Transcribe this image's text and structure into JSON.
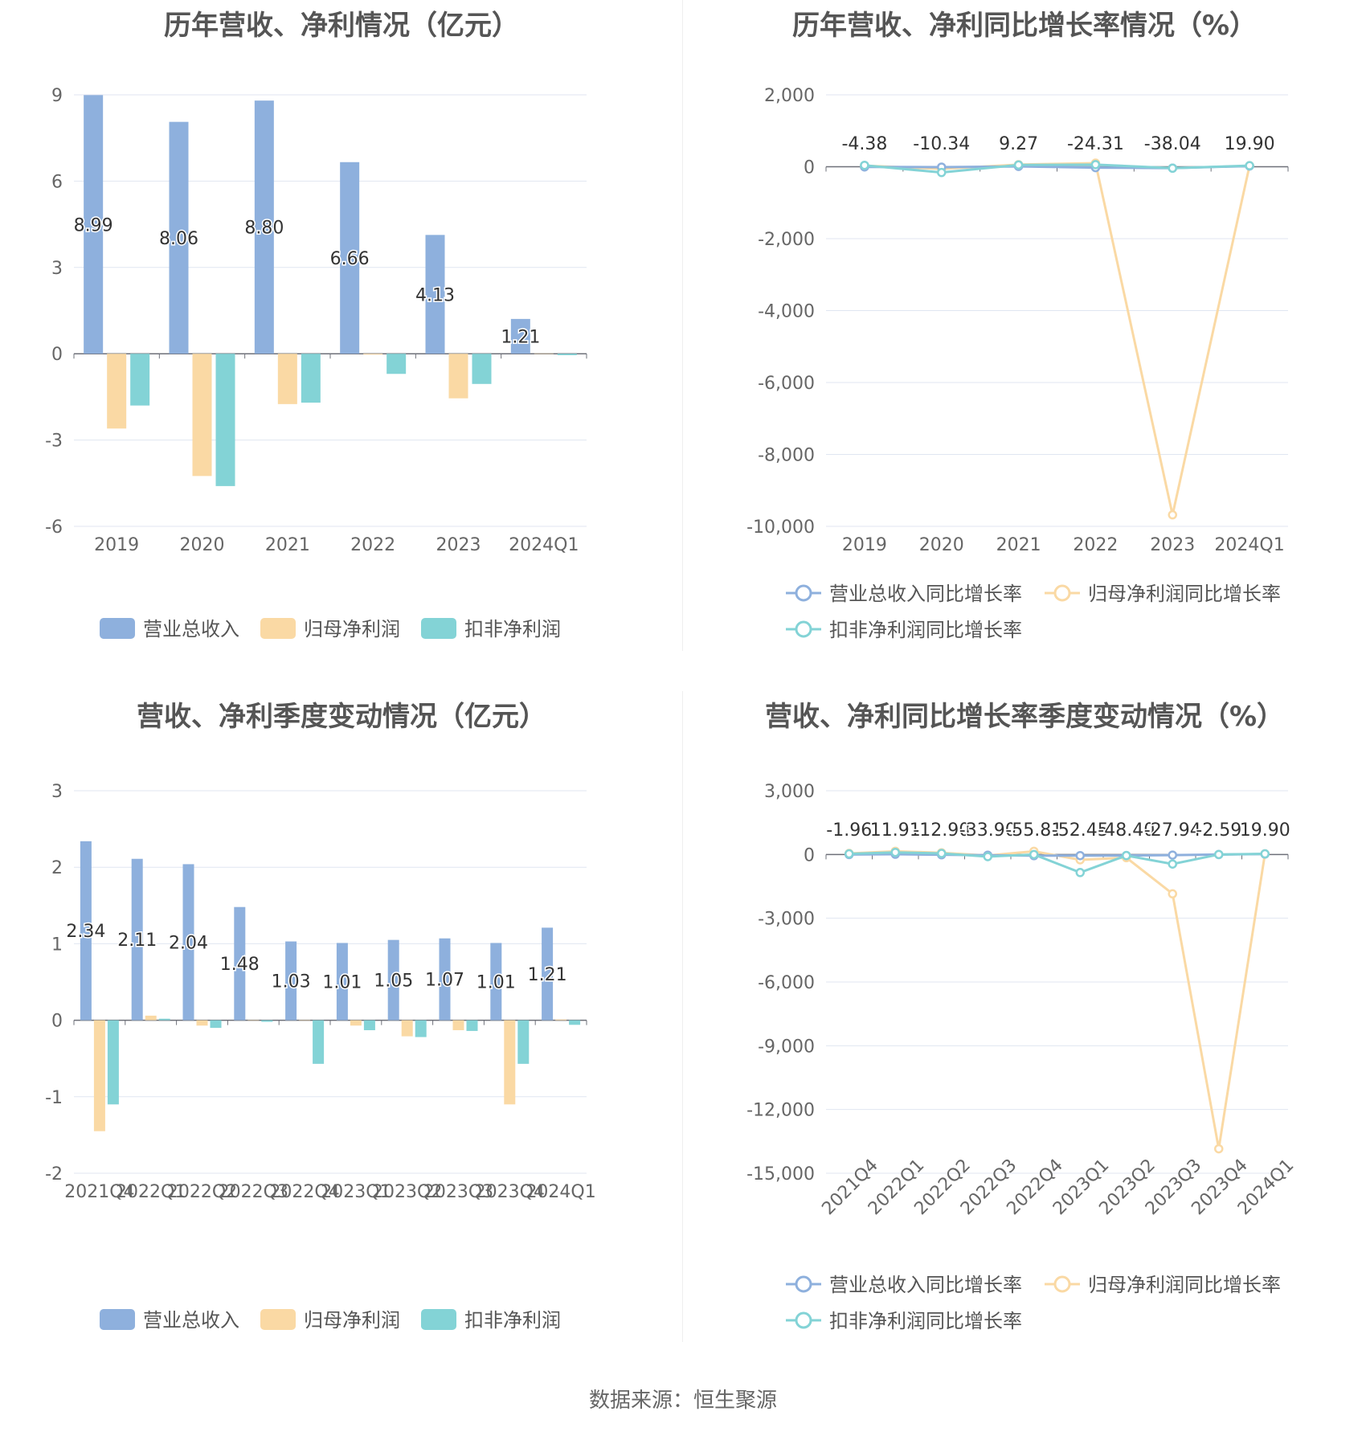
{
  "source": "数据来源：恒生聚源",
  "chart_data": [
    {
      "type": "bar",
      "title": "历年营收、净利情况（亿元）",
      "categories": [
        "2019",
        "2020",
        "2021",
        "2022",
        "2023",
        "2024Q1"
      ],
      "ylim": [
        -6,
        9
      ],
      "yticks": [
        "9",
        "6",
        "3",
        "0",
        "-3",
        "-6"
      ],
      "series": [
        {
          "name": "营业总收入",
          "color": "#8eb0dd",
          "values": [
            8.99,
            8.06,
            8.8,
            6.66,
            4.13,
            1.21
          ],
          "labels": [
            "8.99",
            "8.06",
            "8.80",
            "6.66",
            "4.13",
            "1.21"
          ]
        },
        {
          "name": "归母净利润",
          "color": "#fad9a4",
          "values": [
            -2.6,
            -4.25,
            -1.75,
            -0.03,
            -1.55,
            0.01
          ]
        },
        {
          "name": "扣非净利润",
          "color": "#83d3d6",
          "values": [
            -1.8,
            -4.6,
            -1.7,
            -0.7,
            -1.05,
            -0.05
          ]
        }
      ],
      "legend": "bottom",
      "grid": true
    },
    {
      "type": "line",
      "title": "历年营收、净利同比增长率情况（%）",
      "categories": [
        "2019",
        "2020",
        "2021",
        "2022",
        "2023",
        "2024Q1"
      ],
      "ylim": [
        -10000,
        2000
      ],
      "yticks": [
        "2,000",
        "0",
        "-2,000",
        "-4,000",
        "-6,000",
        "-8,000",
        "-10,000"
      ],
      "series": [
        {
          "name": "营业总收入同比增长率",
          "color": "#8eb0dd",
          "values": [
            -4.38,
            -10.34,
            9.27,
            -24.31,
            -38.04,
            19.9
          ],
          "labels": [
            "-4.38",
            "-10.34",
            "9.27",
            "-24.31",
            "-38.04",
            "19.90"
          ]
        },
        {
          "name": "归母净利润同比增长率",
          "color": "#fad9a4",
          "values": [
            30,
            -60,
            60,
            100,
            -9680,
            30
          ]
        },
        {
          "name": "扣非净利润同比增长率",
          "color": "#83d3d6",
          "values": [
            40,
            -160,
            50,
            60,
            -40,
            30
          ]
        }
      ],
      "legend": "bottom",
      "grid": true
    },
    {
      "type": "bar",
      "title": "营收、净利季度变动情况（亿元）",
      "categories": [
        "2021Q4",
        "2022Q1",
        "2022Q2",
        "2022Q3",
        "2022Q4",
        "2023Q1",
        "2023Q2",
        "2023Q3",
        "2023Q4",
        "2024Q1"
      ],
      "ylim": [
        -2,
        3
      ],
      "yticks": [
        "3",
        "2",
        "1",
        "0",
        "-1",
        "-2"
      ],
      "series": [
        {
          "name": "营业总收入",
          "color": "#8eb0dd",
          "values": [
            2.34,
            2.11,
            2.04,
            1.48,
            1.03,
            1.01,
            1.05,
            1.07,
            1.01,
            1.21
          ],
          "labels": [
            "2.34",
            "2.11",
            "2.04",
            "1.48",
            "1.03",
            "1.01",
            "1.05",
            "1.07",
            "1.01",
            "1.21"
          ]
        },
        {
          "name": "归母净利润",
          "color": "#fad9a4",
          "values": [
            -1.45,
            0.06,
            -0.07,
            0,
            0,
            -0.07,
            -0.21,
            -0.13,
            -1.1,
            0.01
          ]
        },
        {
          "name": "扣非净利润",
          "color": "#83d3d6",
          "values": [
            -1.1,
            0.02,
            -0.1,
            -0.02,
            -0.57,
            -0.13,
            -0.22,
            -0.14,
            -0.57,
            -0.06
          ]
        }
      ],
      "legend": "bottom",
      "grid": true
    },
    {
      "type": "line",
      "title": "营收、净利同比增长率季度变动情况（%）",
      "categories": [
        "2021Q4",
        "2022Q1",
        "2022Q2",
        "2022Q3",
        "2022Q4",
        "2023Q1",
        "2023Q2",
        "2023Q3",
        "2023Q4",
        "2024Q1"
      ],
      "ylim": [
        -15000,
        3000
      ],
      "yticks": [
        "3,000",
        "0",
        "-3,000",
        "-6,000",
        "-9,000",
        "-12,000",
        "-15,000"
      ],
      "rotate_x": true,
      "series": [
        {
          "name": "营业总收入同比增长率",
          "color": "#8eb0dd",
          "values": [
            -1.96,
            11.91,
            -12.9,
            -33.9,
            -55.81,
            -52.45,
            -48.4,
            -27.94,
            -2.59,
            19.9
          ],
          "labels": [
            "-1.96",
            "11.91",
            "-12.90",
            "-33.90",
            "-55.81",
            "-52.45",
            "-48.40",
            "-27.94",
            "-2.59",
            "19.90"
          ]
        },
        {
          "name": "归母净利润同比增长率",
          "color": "#fad9a4",
          "values": [
            50,
            150,
            80,
            -50,
            150,
            -250,
            -150,
            -1850,
            -13850,
            30
          ]
        },
        {
          "name": "扣非净利润同比增长率",
          "color": "#83d3d6",
          "values": [
            30,
            100,
            50,
            -100,
            0,
            -850,
            -50,
            -450,
            0,
            30
          ]
        }
      ],
      "legend": "bottom",
      "grid": true
    }
  ]
}
